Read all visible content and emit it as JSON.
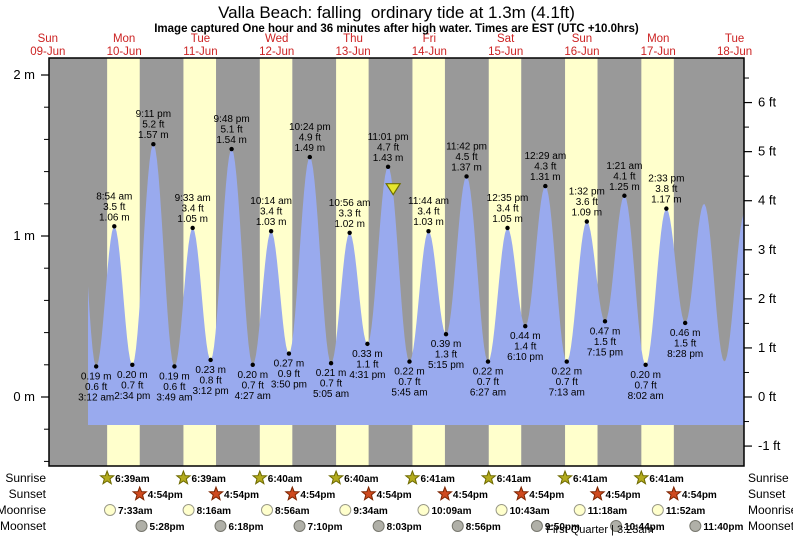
{
  "title": "Valla Beach: falling  ordinary tide at 1.3m (4.1ft)",
  "subtitle": "Image captured One hour and 36 minutes after high water. Times are EST (UTC +10.0hrs)",
  "chart_data": {
    "type": "area",
    "title": "Valla Beach: falling  ordinary tide at 1.3m (4.1ft)",
    "ylabel_left": "meters",
    "ylabel_right": "feet",
    "ylim_m": [
      -0.43,
      2.08
    ],
    "y_ticks_m": [
      {
        "value": 2,
        "label": "2 m"
      },
      {
        "value": 1,
        "label": "1 m"
      },
      {
        "value": 0,
        "label": "0 m"
      }
    ],
    "y_ticks_ft": [
      {
        "value": 6,
        "label": "6 ft"
      },
      {
        "value": 5,
        "label": "5 ft"
      },
      {
        "value": 4,
        "label": "4 ft"
      },
      {
        "value": 3,
        "label": "3 ft"
      },
      {
        "value": 2,
        "label": "2 ft"
      },
      {
        "value": 1,
        "label": "1 ft"
      },
      {
        "value": 0,
        "label": "0 ft"
      },
      {
        "value": -1,
        "label": "-1 ft"
      }
    ],
    "days": [
      {
        "name": "Sun",
        "date": "09-Jun"
      },
      {
        "name": "Mon",
        "date": "10-Jun"
      },
      {
        "name": "Tue",
        "date": "11-Jun"
      },
      {
        "name": "Wed",
        "date": "12-Jun"
      },
      {
        "name": "Thu",
        "date": "13-Jun"
      },
      {
        "name": "Fri",
        "date": "14-Jun"
      },
      {
        "name": "Sat",
        "date": "15-Jun"
      },
      {
        "name": "Sun",
        "date": "16-Jun"
      },
      {
        "name": "Mon",
        "date": "17-Jun"
      },
      {
        "name": "Tue",
        "date": "18-Jun"
      }
    ],
    "tide_events": [
      {
        "day": 0,
        "t": 20.9,
        "m": 1.58,
        "type": "high",
        "hidden": true
      },
      {
        "day": 1,
        "time": "3:12 am",
        "type": "low",
        "m": 0.19,
        "labels": [
          "0.19 m",
          "0.6 ft",
          "3:12 am"
        ]
      },
      {
        "day": 1,
        "time": "8:54 am",
        "type": "high",
        "m": 1.06,
        "labels": [
          "8:54 am",
          "3.5 ft",
          "1.06 m"
        ]
      },
      {
        "day": 1,
        "time": "2:34 pm",
        "type": "low",
        "m": 0.2,
        "labels": [
          "0.20 m",
          "0.7 ft",
          "2:34 pm"
        ]
      },
      {
        "day": 1,
        "time": "9:11 pm",
        "type": "high",
        "m": 1.57,
        "labels": [
          "9:11 pm",
          "5.2 ft",
          "1.57 m"
        ]
      },
      {
        "day": 2,
        "time": "3:49 am",
        "type": "low",
        "m": 0.19,
        "labels": [
          "0.19 m",
          "0.6 ft",
          "3:49 am"
        ]
      },
      {
        "day": 2,
        "time": "9:33 am",
        "type": "high",
        "m": 1.05,
        "labels": [
          "9:33 am",
          "3.4 ft",
          "1.05 m"
        ]
      },
      {
        "day": 2,
        "time": "3:12 pm",
        "type": "low",
        "m": 0.23,
        "labels": [
          "0.23 m",
          "0.8 ft",
          "3:12 pm"
        ]
      },
      {
        "day": 2,
        "time": "9:48 pm",
        "type": "high",
        "m": 1.54,
        "labels": [
          "9:48 pm",
          "5.1 ft",
          "1.54 m"
        ]
      },
      {
        "day": 3,
        "time": "4:27 am",
        "type": "low",
        "m": 0.2,
        "labels": [
          "0.20 m",
          "0.7 ft",
          "4:27 am"
        ]
      },
      {
        "day": 3,
        "time": "10:14 am",
        "type": "high",
        "m": 1.03,
        "labels": [
          "10:14 am",
          "3.4 ft",
          "1.03 m"
        ]
      },
      {
        "day": 3,
        "time": "3:50 pm",
        "type": "low",
        "m": 0.27,
        "labels": [
          "0.27 m",
          "0.9 ft",
          "3:50 pm"
        ]
      },
      {
        "day": 3,
        "time": "10:24 pm",
        "type": "high",
        "m": 1.49,
        "labels": [
          "10:24 pm",
          "4.9 ft",
          "1.49 m"
        ]
      },
      {
        "day": 4,
        "time": "5:05 am",
        "type": "low",
        "m": 0.21,
        "labels": [
          "0.21 m",
          "0.7 ft",
          "5:05 am"
        ]
      },
      {
        "day": 4,
        "time": "10:56 am",
        "type": "high",
        "m": 1.02,
        "labels": [
          "10:56 am",
          "3.3 ft",
          "1.02 m"
        ]
      },
      {
        "day": 4,
        "time": "4:31 pm",
        "type": "low",
        "m": 0.33,
        "labels": [
          "0.33 m",
          "1.1 ft",
          "4:31 pm"
        ]
      },
      {
        "day": 4,
        "time": "11:01 pm",
        "type": "high",
        "m": 1.43,
        "labels": [
          "11:01 pm",
          "4.7 ft",
          "1.43 m"
        ],
        "capture_ref": true
      },
      {
        "day": 5,
        "time": "5:45 am",
        "type": "low",
        "m": 0.22,
        "labels": [
          "0.22 m",
          "0.7 ft",
          "5:45 am"
        ]
      },
      {
        "day": 5,
        "time": "11:44 am",
        "type": "high",
        "m": 1.03,
        "labels": [
          "11:44 am",
          "3.4 ft",
          "1.03 m"
        ]
      },
      {
        "day": 5,
        "time": "5:15 pm",
        "type": "low",
        "m": 0.39,
        "labels": [
          "0.39 m",
          "1.3 ft",
          "5:15 pm"
        ]
      },
      {
        "day": 5,
        "time": "11:42 pm",
        "type": "high",
        "m": 1.37,
        "labels": [
          "11:42 pm",
          "4.5 ft",
          "1.37 m"
        ]
      },
      {
        "day": 6,
        "time": "6:27 am",
        "type": "low",
        "m": 0.22,
        "labels": [
          "0.22 m",
          "0.7 ft",
          "6:27 am"
        ]
      },
      {
        "day": 6,
        "time": "12:35 pm",
        "type": "high",
        "m": 1.05,
        "labels": [
          "12:35 pm",
          "3.4 ft",
          "1.05 m"
        ]
      },
      {
        "day": 6,
        "time": "6:10 pm",
        "type": "low",
        "m": 0.44,
        "labels": [
          "0.44 m",
          "1.4 ft",
          "6:10 pm"
        ]
      },
      {
        "day": 7,
        "time": "12:29 am",
        "type": "high",
        "m": 1.31,
        "labels": [
          "12:29 am",
          "4.3 ft",
          "1.31 m"
        ]
      },
      {
        "day": 7,
        "time": "7:13 am",
        "type": "low",
        "m": 0.22,
        "labels": [
          "0.22 m",
          "0.7 ft",
          "7:13 am"
        ]
      },
      {
        "day": 7,
        "time": "1:32 pm",
        "type": "high",
        "m": 1.09,
        "labels": [
          "1:32 pm",
          "3.6 ft",
          "1.09 m"
        ]
      },
      {
        "day": 7,
        "time": "7:15 pm",
        "type": "low",
        "m": 0.47,
        "labels": [
          "0.47 m",
          "1.5 ft",
          "7:15 pm"
        ]
      },
      {
        "day": 8,
        "time": "1:21 am",
        "type": "high",
        "m": 1.25,
        "labels": [
          "1:21 am",
          "4.1 ft",
          "1.25 m"
        ]
      },
      {
        "day": 8,
        "time": "8:02 am",
        "type": "low",
        "m": 0.2,
        "labels": [
          "0.20 m",
          "0.7 ft",
          "8:02 am"
        ]
      },
      {
        "day": 8,
        "time": "2:33 pm",
        "type": "high",
        "m": 1.17,
        "labels": [
          "2:33 pm",
          "3.8 ft",
          "1.17 m"
        ]
      },
      {
        "day": 8,
        "time": "8:28 pm",
        "type": "low",
        "m": 0.46,
        "labels": [
          "0.46 m",
          "1.5 ft",
          "8:28 pm"
        ]
      },
      {
        "day": 9,
        "t": 2.4,
        "m": 1.2,
        "type": "high",
        "hidden": true
      },
      {
        "day": 9,
        "t": 8.8,
        "m": 0.22,
        "type": "low",
        "hidden": true
      },
      {
        "day": 9,
        "t": 15.3,
        "m": 1.15,
        "type": "high",
        "hidden": true
      }
    ],
    "capture_marker": {
      "offset_hours": 1.6
    },
    "sun_moon_rows": [
      {
        "label": "Sunrise",
        "icon": "sunrise-star",
        "times": [
          "6:39am",
          "6:39am",
          "6:40am",
          "6:40am",
          "6:41am",
          "6:41am",
          "6:41am",
          "6:41am"
        ]
      },
      {
        "label": "Sunset",
        "icon": "sunset-star",
        "times": [
          "4:54pm",
          "4:54pm",
          "4:54pm",
          "4:54pm",
          "4:54pm",
          "4:54pm",
          "4:54pm",
          "4:54pm"
        ]
      },
      {
        "label": "Moonrise",
        "icon": "moonrise-circle",
        "times": [
          "7:33am",
          "8:16am",
          "8:56am",
          "9:34am",
          "10:09am",
          "10:43am",
          "11:18am",
          "11:52am"
        ]
      },
      {
        "label": "Moonset",
        "icon": "moonset-circle",
        "times": [
          "5:28pm",
          "6:18pm",
          "7:10pm",
          "8:03pm",
          "8:56pm",
          "9:50pm",
          "10:44pm",
          "11:40pm"
        ]
      }
    ],
    "moon_phase_note": "First Quarter | 3:23am",
    "legend_position": "none",
    "grid": false,
    "colors": {
      "plot_bg": "#999999",
      "daylight_band": "#ffffcc",
      "tide_fill": "#99aaee",
      "day_label": "#cc2222",
      "text": "#000000",
      "sunrise_star_fill": "#b3ab1e",
      "sunrise_star_stroke": "#6e6a00",
      "sunset_star_fill": "#cf4a1f",
      "sunset_star_stroke": "#7c2400",
      "moonrise_fill": "#ffffcc",
      "moonrise_stroke": "#999988",
      "moonset_fill": "#b0b0a8",
      "moonset_stroke": "#77776e",
      "marker_fill": "#e6e62e",
      "marker_stroke": "#6e6e00"
    }
  }
}
